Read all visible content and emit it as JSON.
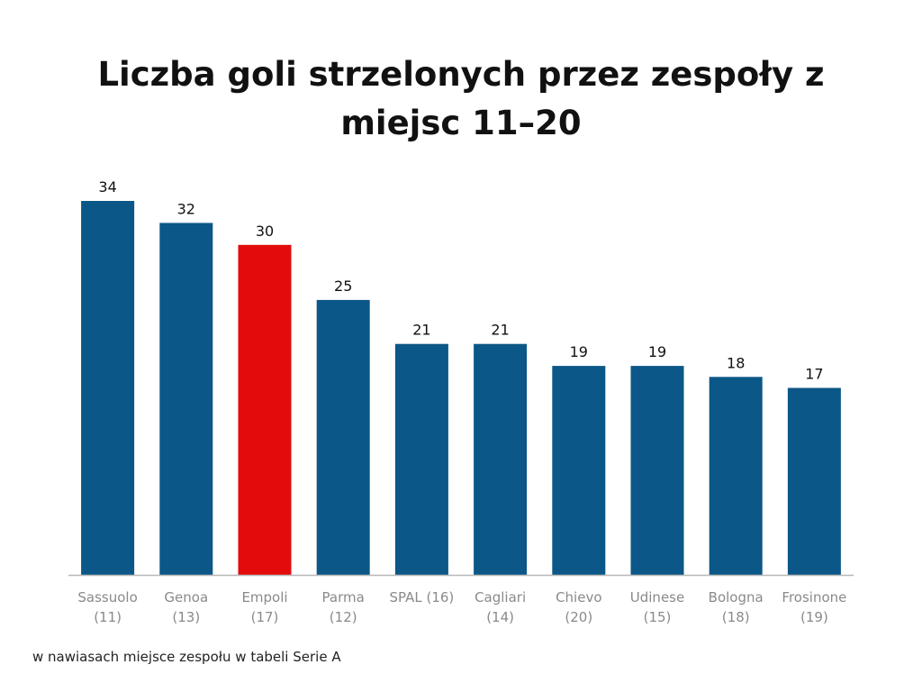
{
  "chart_data": {
    "type": "bar",
    "title": "Liczba goli strzelonych przez zespoły z miejsc 11–20",
    "categories": [
      "Sassuolo",
      "Genoa",
      "Empoli",
      "Parma",
      "SPAL (16)",
      "Cagliari",
      "Chievo",
      "Udinese",
      "Bologna",
      "Frosinone"
    ],
    "category_sublabels": [
      "(11)",
      "(13)",
      "(17)",
      "(12)",
      "",
      "(14)",
      "(20)",
      "(15)",
      "(18)",
      "(19)"
    ],
    "values": [
      34,
      32,
      30,
      25,
      21,
      21,
      19,
      19,
      18,
      17
    ],
    "data_labels": [
      "34",
      "32",
      "30",
      "25",
      "21",
      "21",
      "19",
      "19",
      "18",
      "17"
    ],
    "highlight_index": 2,
    "bar_color": "#0b5787",
    "highlight_color": "#e30b0b",
    "ylim": [
      0,
      34
    ],
    "grid": false,
    "xlabel": "",
    "ylabel": ""
  },
  "footnote": "w nawiasach miejsce zespołu w tabeli Serie A"
}
